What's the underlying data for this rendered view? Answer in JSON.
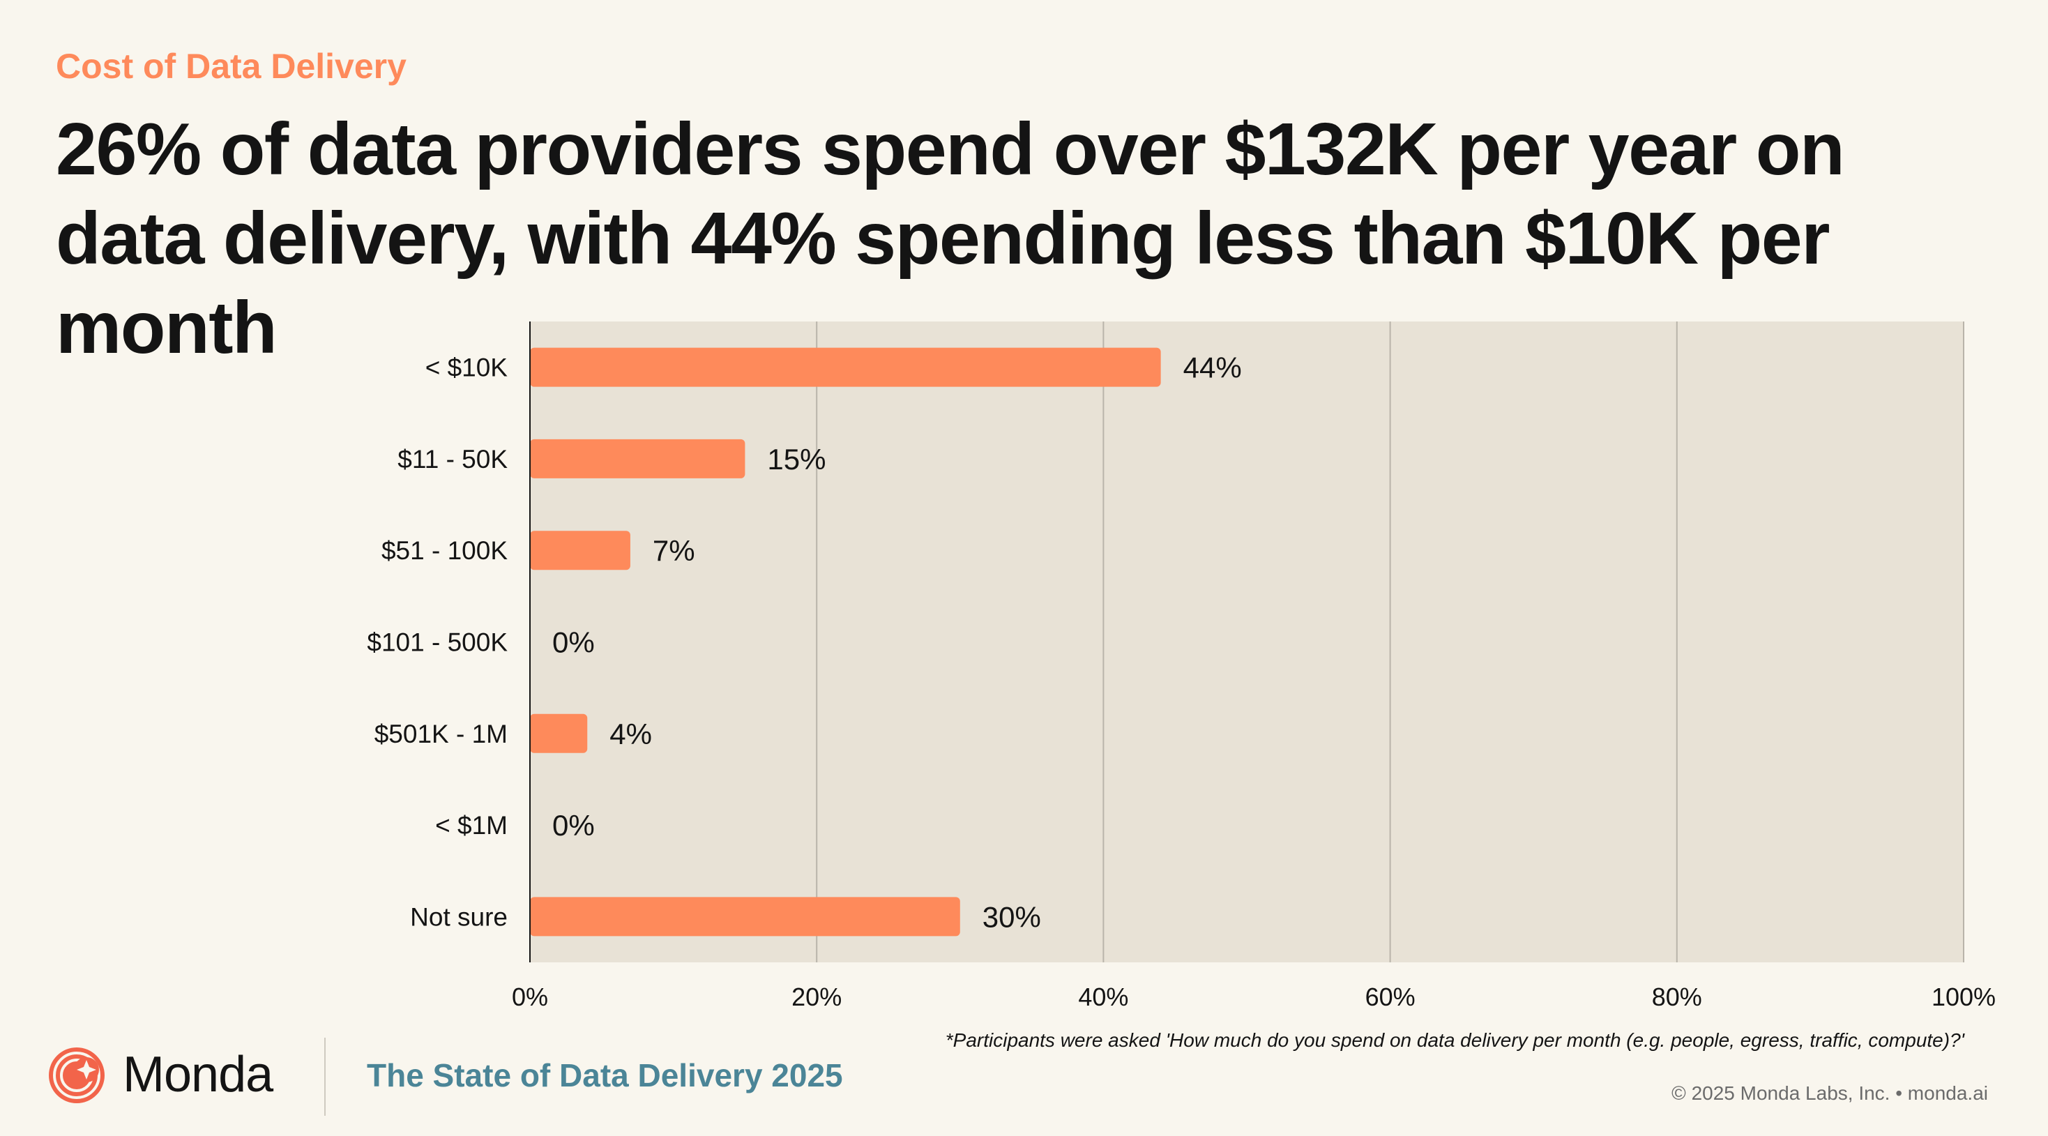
{
  "header": {
    "eyebrow": "Cost of Data Delivery",
    "headline": "26% of data providers spend over $132K per year on data delivery, with 44% spending less than $10K per month"
  },
  "colors": {
    "accent": "#fe8a5b",
    "bar": "#fe8a5b",
    "plot_bg": "#e8e2d6",
    "page_bg": "#f9f6ee",
    "report_title": "#4b8597"
  },
  "chart_data": {
    "type": "bar",
    "orientation": "horizontal",
    "categories": [
      "< $10K",
      "$11 - 50K",
      "$51 - 100K",
      "$101 - 500K",
      "$501K - 1M",
      "< $1M",
      "Not sure"
    ],
    "values": [
      44,
      15,
      7,
      0,
      4,
      0,
      30
    ],
    "value_labels": [
      "44%",
      "15%",
      "7%",
      "0%",
      "4%",
      "0%",
      "30%"
    ],
    "xlim": [
      0,
      100
    ],
    "xticks": [
      0,
      20,
      40,
      60,
      80,
      100
    ],
    "xtick_labels": [
      "0%",
      "20%",
      "40%",
      "60%",
      "80%",
      "100%"
    ],
    "grid": true,
    "legend": false
  },
  "footer": {
    "footnote": "*Participants were asked 'How much do you spend on data delivery per month (e.g. people, egress, traffic, compute)?'",
    "brand": "Monda",
    "report_title": "The State of Data Delivery 2025",
    "copyright": "© 2025 Monda Labs, Inc. • monda.ai",
    "logo_icon": "monda-logo-icon"
  }
}
